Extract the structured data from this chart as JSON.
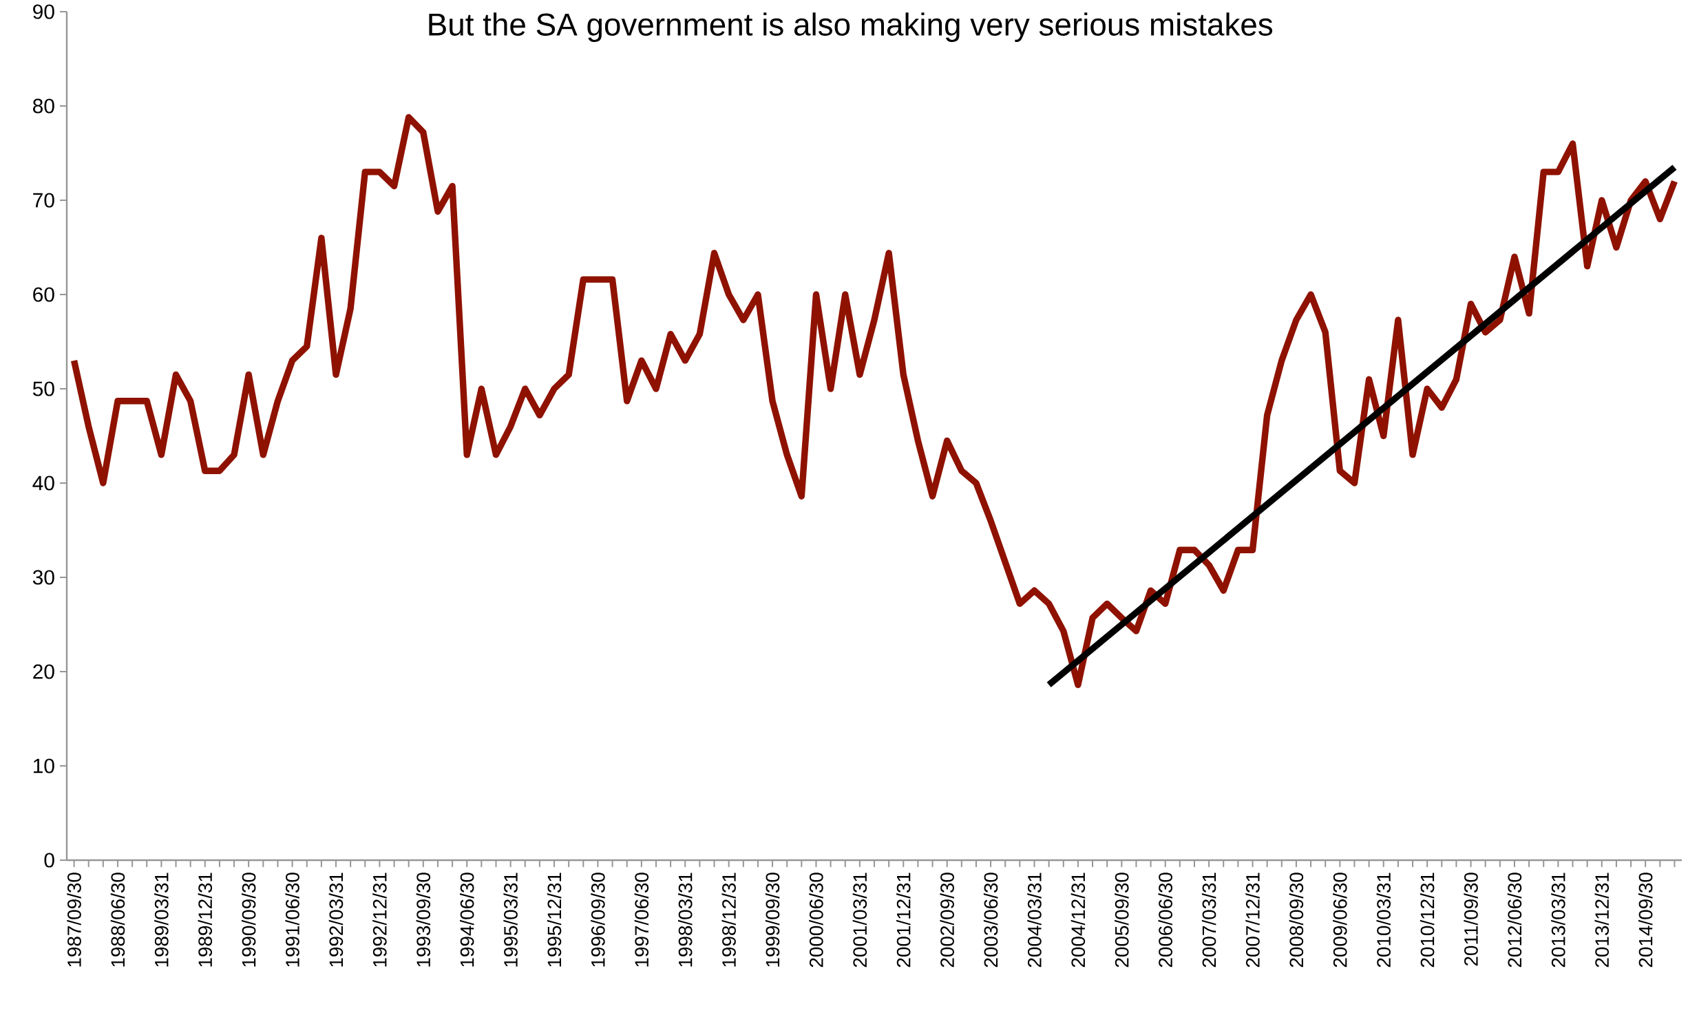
{
  "chart_data": {
    "type": "line",
    "title": "But the SA government is also making very serious mistakes",
    "categories": [
      "1987/09/30",
      null,
      null,
      "1988/06/30",
      null,
      null,
      "1989/03/31",
      null,
      null,
      "1989/12/31",
      null,
      null,
      "1990/09/30",
      null,
      null,
      "1991/06/30",
      null,
      null,
      "1992/03/31",
      null,
      null,
      "1992/12/31",
      null,
      null,
      "1993/09/30",
      null,
      null,
      "1994/06/30",
      null,
      null,
      "1995/03/31",
      null,
      null,
      "1995/12/31",
      null,
      null,
      "1996/09/30",
      null,
      null,
      "1997/06/30",
      null,
      null,
      "1998/03/31",
      null,
      null,
      "1998/12/31",
      null,
      null,
      "1999/09/30",
      null,
      null,
      "2000/06/30",
      null,
      null,
      "2001/03/31",
      null,
      null,
      "2001/12/31",
      null,
      null,
      "2002/09/30",
      null,
      null,
      "2003/06/30",
      null,
      null,
      "2004/03/31",
      null,
      null,
      "2004/12/31",
      null,
      null,
      "2005/09/30",
      null,
      null,
      "2006/06/30",
      null,
      null,
      "2007/03/31",
      null,
      null,
      "2007/12/31",
      null,
      null,
      "2008/09/30",
      null,
      null,
      "2009/06/30",
      null,
      null,
      "2010/03/31",
      null,
      null,
      "2010/12/31",
      null,
      null,
      "2011/09/30",
      null,
      null,
      "2012/06/30",
      null,
      null,
      "2013/03/31",
      null,
      null,
      "2013/12/31",
      null,
      null,
      "2014/09/30",
      null,
      null
    ],
    "series": [
      {
        "color": "#8f1200",
        "values": [
          53,
          46,
          40,
          48.7,
          48.7,
          48.7,
          43,
          51.5,
          48.7,
          41.3,
          41.3,
          43,
          51.5,
          43,
          48.7,
          53,
          54.5,
          66,
          51.5,
          58.5,
          73,
          73,
          71.5,
          78.8,
          77.2,
          68.8,
          71.5,
          43,
          50,
          43,
          46,
          50,
          47.2,
          50,
          51.5,
          61.6,
          61.6,
          61.6,
          48.7,
          53,
          50,
          55.8,
          53,
          55.8,
          64.4,
          60,
          57.3,
          60,
          48.7,
          43,
          38.6,
          60,
          50,
          60,
          51.5,
          57.3,
          64.4,
          51.5,
          44.5,
          38.6,
          44.5,
          41.3,
          40,
          36,
          31.6,
          27.2,
          28.6,
          27.2,
          24.3,
          18.6,
          25.7,
          27.2,
          25.7,
          24.3,
          28.6,
          27.2,
          32.9,
          32.9,
          31.3,
          28.6,
          32.9,
          32.9,
          47.2,
          53,
          57.3,
          60,
          56,
          41.3,
          40,
          51,
          45,
          57.3,
          43,
          50,
          48,
          51,
          59,
          56,
          57.3,
          64,
          58,
          73,
          73,
          76,
          63,
          70,
          65,
          70,
          72,
          68,
          72
        ]
      },
      {
        "type": "line",
        "color": "#000000",
        "values": [
          null,
          null,
          null,
          null,
          null,
          null,
          null,
          null,
          null,
          null,
          null,
          null,
          null,
          null,
          null,
          null,
          null,
          null,
          null,
          null,
          null,
          null,
          null,
          null,
          null,
          null,
          null,
          null,
          null,
          null,
          null,
          null,
          null,
          null,
          null,
          null,
          null,
          null,
          null,
          null,
          null,
          null,
          null,
          null,
          null,
          null,
          null,
          null,
          null,
          null,
          null,
          null,
          null,
          null,
          null,
          null,
          null,
          null,
          null,
          null,
          null,
          null,
          null,
          null,
          null,
          null,
          null,
          18.6,
          null,
          null,
          null,
          null,
          null,
          null,
          null,
          null,
          null,
          null,
          null,
          null,
          null,
          null,
          null,
          null,
          null,
          null,
          null,
          null,
          null,
          null,
          null,
          null,
          null,
          null,
          null,
          null,
          null,
          null,
          null,
          null,
          null,
          null,
          null,
          null,
          null,
          null,
          null,
          null,
          null,
          null,
          73.5
        ]
      }
    ],
    "ylim": [
      0,
      90
    ],
    "yticks": [
      0,
      10,
      20,
      30,
      40,
      50,
      60,
      70,
      80,
      90
    ],
    "grid": false,
    "marker": "none",
    "line_style": "solid"
  }
}
